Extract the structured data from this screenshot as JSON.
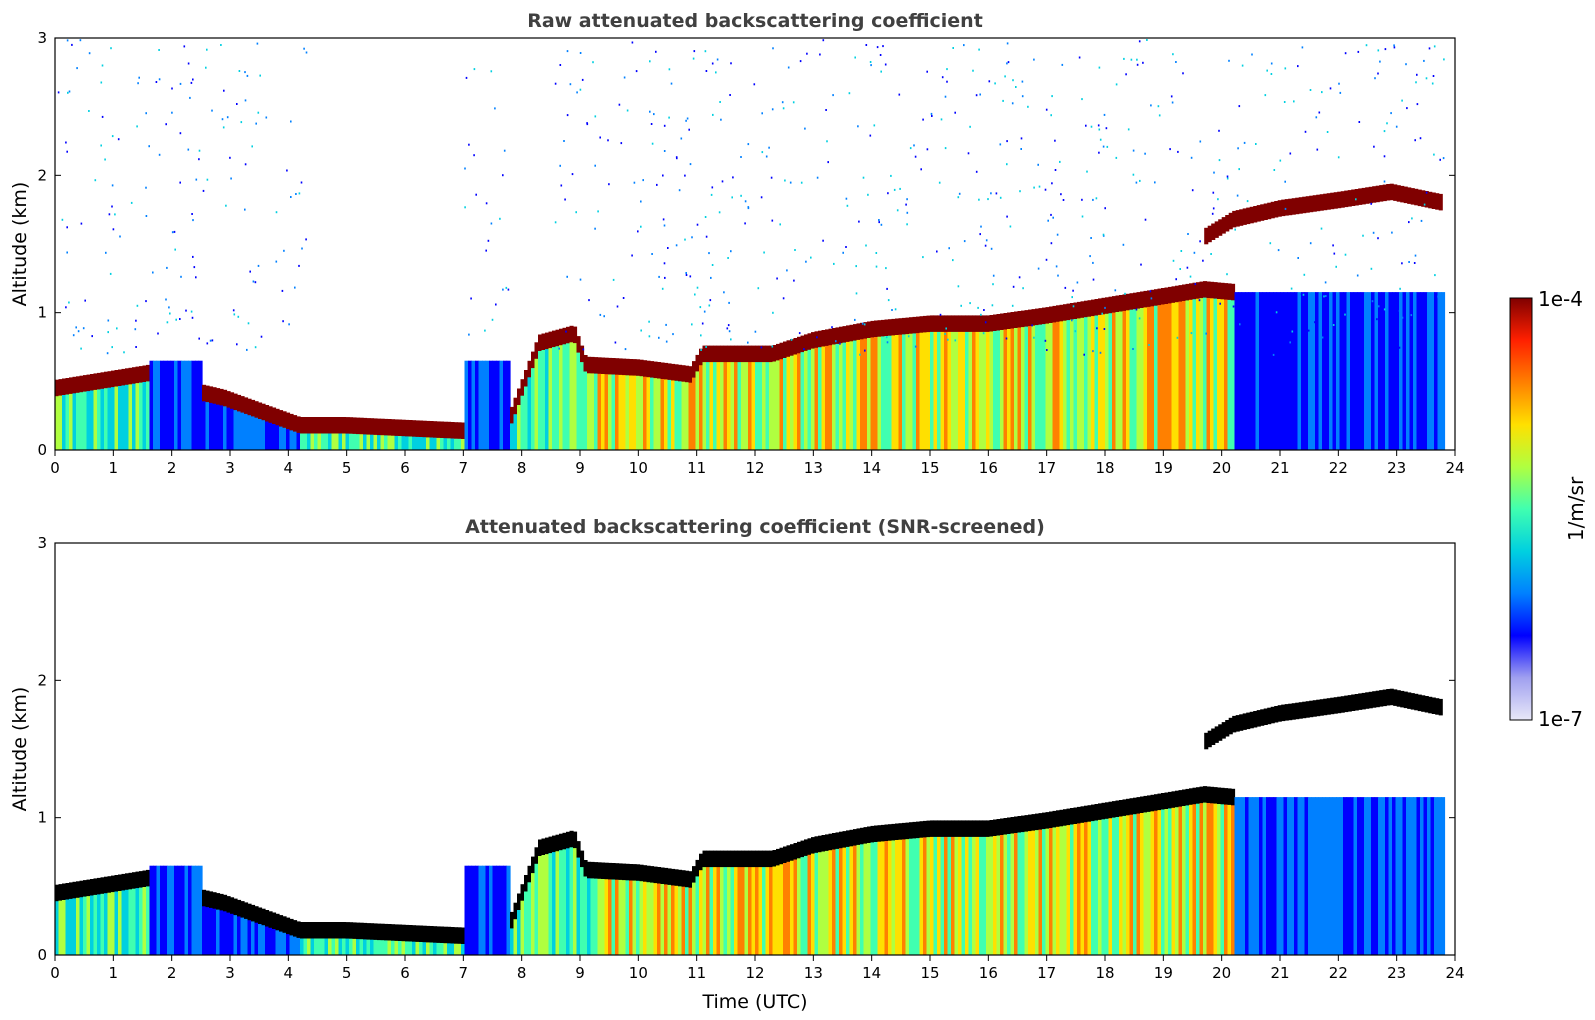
{
  "chart_data": [
    {
      "type": "heatmap",
      "title": "Raw attenuated backscattering coefficient",
      "xlabel": "",
      "ylabel": "Altitude (km)",
      "xlim": [
        0,
        24
      ],
      "ylim": [
        0,
        3
      ],
      "xticks": [
        "0",
        "1",
        "2",
        "3",
        "4",
        "5",
        "6",
        "7",
        "8",
        "9",
        "10",
        "11",
        "12",
        "13",
        "14",
        "15",
        "16",
        "17",
        "18",
        "19",
        "20",
        "21",
        "22",
        "23",
        "24"
      ],
      "yticks": [
        "0",
        "1",
        "2",
        "3"
      ],
      "screened": false,
      "cloud_base_layer": {
        "time": [
          0,
          1.6,
          1.7,
          2.5,
          2.9,
          4.2,
          5,
          6,
          7,
          7.2,
          7.8,
          8.3,
          8.9,
          9.1,
          10,
          10.9,
          11.1,
          12.3,
          13,
          14,
          15,
          16,
          17,
          18,
          19,
          19.7,
          20.2
        ],
        "altitude_km": [
          0.45,
          0.56,
          null,
          0.42,
          0.38,
          0.18,
          0.18,
          0.16,
          0.14,
          null,
          0.22,
          0.78,
          0.85,
          0.62,
          0.6,
          0.55,
          0.7,
          0.7,
          0.8,
          0.88,
          0.92,
          0.92,
          0.98,
          1.05,
          1.12,
          1.17,
          1.15
        ]
      },
      "upper_cloud_layer": {
        "time": [
          19.7,
          20.2,
          21,
          22,
          22.9,
          23.8
        ],
        "altitude_km": [
          1.55,
          1.68,
          1.76,
          1.82,
          1.88,
          1.8
        ]
      }
    },
    {
      "type": "heatmap",
      "title": "Attenuated backscattering coefficient (SNR-screened)",
      "xlabel": "Time (UTC)",
      "ylabel": "Altitude (km)",
      "xlim": [
        0,
        24
      ],
      "ylim": [
        0,
        3
      ],
      "xticks": [
        "0",
        "1",
        "2",
        "3",
        "4",
        "5",
        "6",
        "7",
        "8",
        "9",
        "10",
        "11",
        "12",
        "13",
        "14",
        "15",
        "16",
        "17",
        "18",
        "19",
        "20",
        "21",
        "22",
        "23",
        "24"
      ],
      "yticks": [
        "0",
        "1",
        "2",
        "3"
      ],
      "screened": true,
      "cloud_base_layer": {
        "time": [
          0,
          1.6,
          1.7,
          2.5,
          2.9,
          4.2,
          5,
          6,
          7,
          7.2,
          7.8,
          8.3,
          8.9,
          9.1,
          10,
          10.9,
          11.1,
          12.3,
          13,
          14,
          15,
          16,
          17,
          18,
          19,
          19.7,
          20.2
        ],
        "altitude_km": [
          0.45,
          0.56,
          null,
          0.42,
          0.38,
          0.18,
          0.18,
          0.16,
          0.14,
          null,
          0.22,
          0.78,
          0.85,
          0.62,
          0.6,
          0.55,
          0.7,
          0.7,
          0.8,
          0.88,
          0.92,
          0.92,
          0.98,
          1.05,
          1.12,
          1.17,
          1.15
        ]
      },
      "upper_cloud_layer": {
        "time": [
          19.7,
          20.2,
          21,
          22,
          22.9,
          23.8
        ],
        "altitude_km": [
          1.55,
          1.68,
          1.76,
          1.82,
          1.88,
          1.8
        ]
      }
    }
  ],
  "colorbar": {
    "label": "1/m/sr",
    "max_label": "1e-4",
    "min_label": "1e-7",
    "colors": [
      "#e8e8f8",
      "#a0a0f0",
      "#0000ff",
      "#0080ff",
      "#00d0e0",
      "#40ffb0",
      "#b0ff40",
      "#ffe000",
      "#ff8000",
      "#ff2000",
      "#800000"
    ]
  }
}
